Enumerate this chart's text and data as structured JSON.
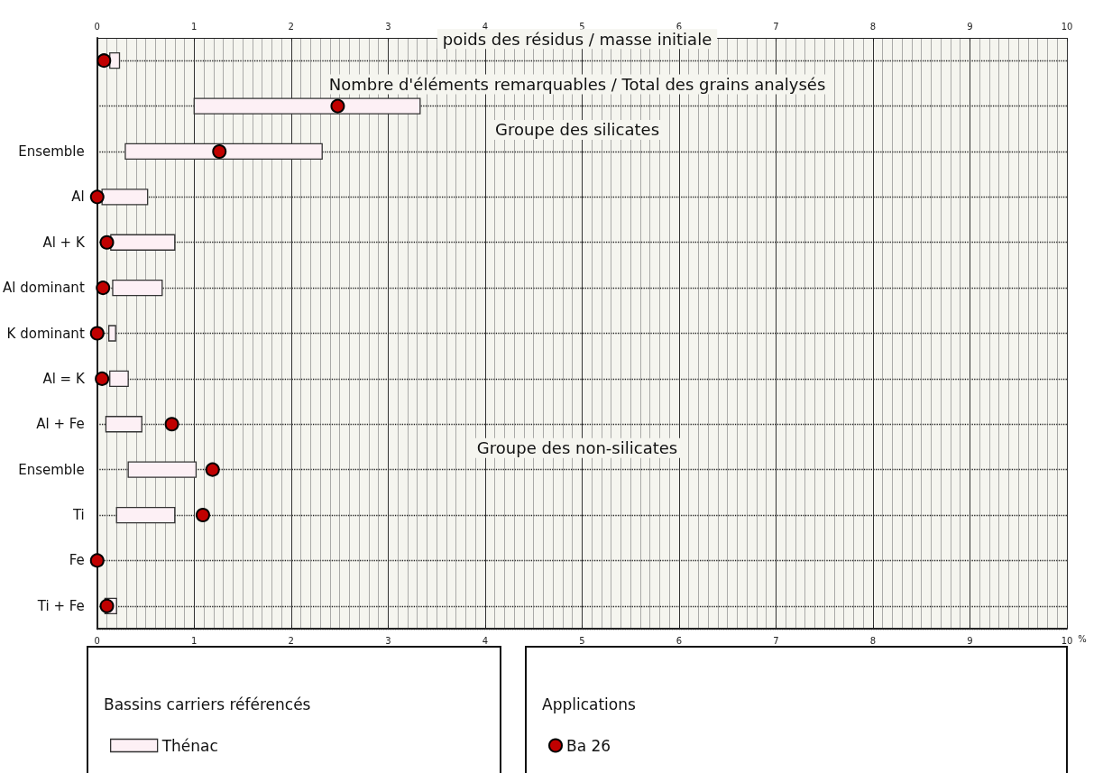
{
  "chart_data": {
    "type": "bar",
    "orientation": "horizontal",
    "categories": [
      null,
      null,
      "Ensemble",
      "Al",
      "Al + K",
      "Al dominant",
      "K dominant",
      "Al = K",
      "Al + Fe",
      "Ensemble",
      "Ti",
      "Fe",
      "Ti + Fe"
    ],
    "series": [
      {
        "name": "Thénac",
        "color": "#fdf0f5",
        "base": [
          0.13,
          1.0,
          0.29,
          0.05,
          0.14,
          0.16,
          0.12,
          0.13,
          0.09,
          0.32,
          0.2,
          null,
          0.08
        ],
        "values": [
          0.1,
          2.33,
          2.03,
          0.47,
          0.66,
          0.51,
          0.07,
          0.19,
          0.37,
          0.7,
          0.6,
          null,
          0.12
        ]
      },
      {
        "name": "Ba 26",
        "type": "scatter",
        "color": "#c00000",
        "values": [
          0.07,
          2.48,
          1.26,
          0,
          0.1,
          0.06,
          0,
          0.05,
          0.77,
          1.19,
          1.09,
          0,
          0.1
        ]
      }
    ],
    "xlim": [
      0,
      10
    ],
    "xticks": [
      0,
      1,
      2,
      3,
      4,
      5,
      6,
      7,
      8,
      9,
      10
    ],
    "x2lim": [
      0,
      10
    ],
    "x2ticks": [
      0,
      1,
      2,
      3,
      4,
      5,
      6,
      7,
      8,
      9,
      10
    ],
    "xlabel": "%",
    "annotations": [
      "poids des résidus / masse initiale",
      "Nombre d'éléments remarquables / Total des grains analysés",
      "Groupe des silicates",
      "Groupe des non-silicates",
      "Bassins carriers référencés",
      "Applications"
    ],
    "grid": true,
    "legend": "bottom",
    "marker": "circle"
  }
}
